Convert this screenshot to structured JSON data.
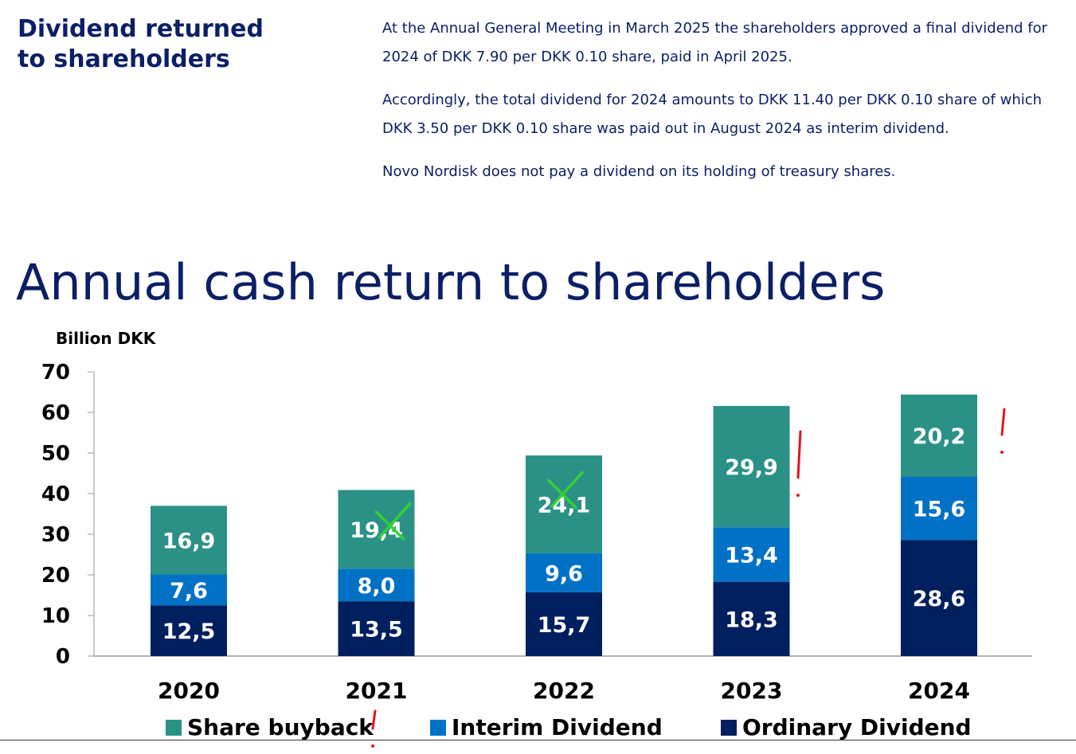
{
  "header": {
    "title": "Dividend returned\nto shareholders",
    "paragraphs": [
      "At the Annual General Meeting in March 2025 the shareholders approved a final dividend for 2024 of DKK 7.90 per DKK 0.10 share, paid in April 2025.",
      "Accordingly, the total dividend for 2024 amounts to DKK 11.40 per DKK 0.10 share of which DKK 3.50 per DKK 0.10 share was paid out in August 2024 as interim dividend.",
      "Novo Nordisk does not pay a dividend on its holding of treasury shares."
    ]
  },
  "chart_data": {
    "type": "bar",
    "stacked": true,
    "title": "Annual cash return to shareholders",
    "ylabel": "Billion DKK",
    "ylim": [
      0,
      70
    ],
    "yticks": [
      "0",
      "10",
      "20",
      "30",
      "40",
      "50",
      "60",
      "70"
    ],
    "categories": [
      "2020",
      "2021",
      "2022",
      "2023",
      "2024"
    ],
    "series": [
      {
        "name": "Ordinary Dividend",
        "color": "#001f5f",
        "values": [
          12.5,
          13.5,
          15.7,
          18.3,
          28.6
        ],
        "labels": [
          "12,5",
          "13,5",
          "15,7",
          "18,3",
          "28,6"
        ]
      },
      {
        "name": "Interim Dividend",
        "color": "#0071c5",
        "values": [
          7.6,
          8.0,
          9.6,
          13.4,
          15.6
        ],
        "labels": [
          "7,6",
          "8,0",
          "9,6",
          "13,4",
          "15,6"
        ]
      },
      {
        "name": "Share buyback",
        "color": "#2b9187",
        "values": [
          16.9,
          19.4,
          24.1,
          29.9,
          20.2
        ],
        "labels": [
          "16,9",
          "19,4",
          "24,1",
          "29,9",
          "20,2"
        ]
      }
    ],
    "legend": {
      "placement": "bottom",
      "order": [
        "Share buyback",
        "Interim Dividend",
        "Ordinary Dividend"
      ]
    },
    "grid": false,
    "annotations": {
      "green_cross_marks": [
        "2021 Share buyback",
        "2022 Share buyback"
      ],
      "red_exclamation_marks": [
        "2023 Share buyback",
        "2024 Share buyback",
        "legend Share buyback"
      ]
    }
  },
  "colors": {
    "text": "#0b1f66",
    "cross_mark": "#35d035",
    "exclamation_mark": "#e0161e"
  }
}
